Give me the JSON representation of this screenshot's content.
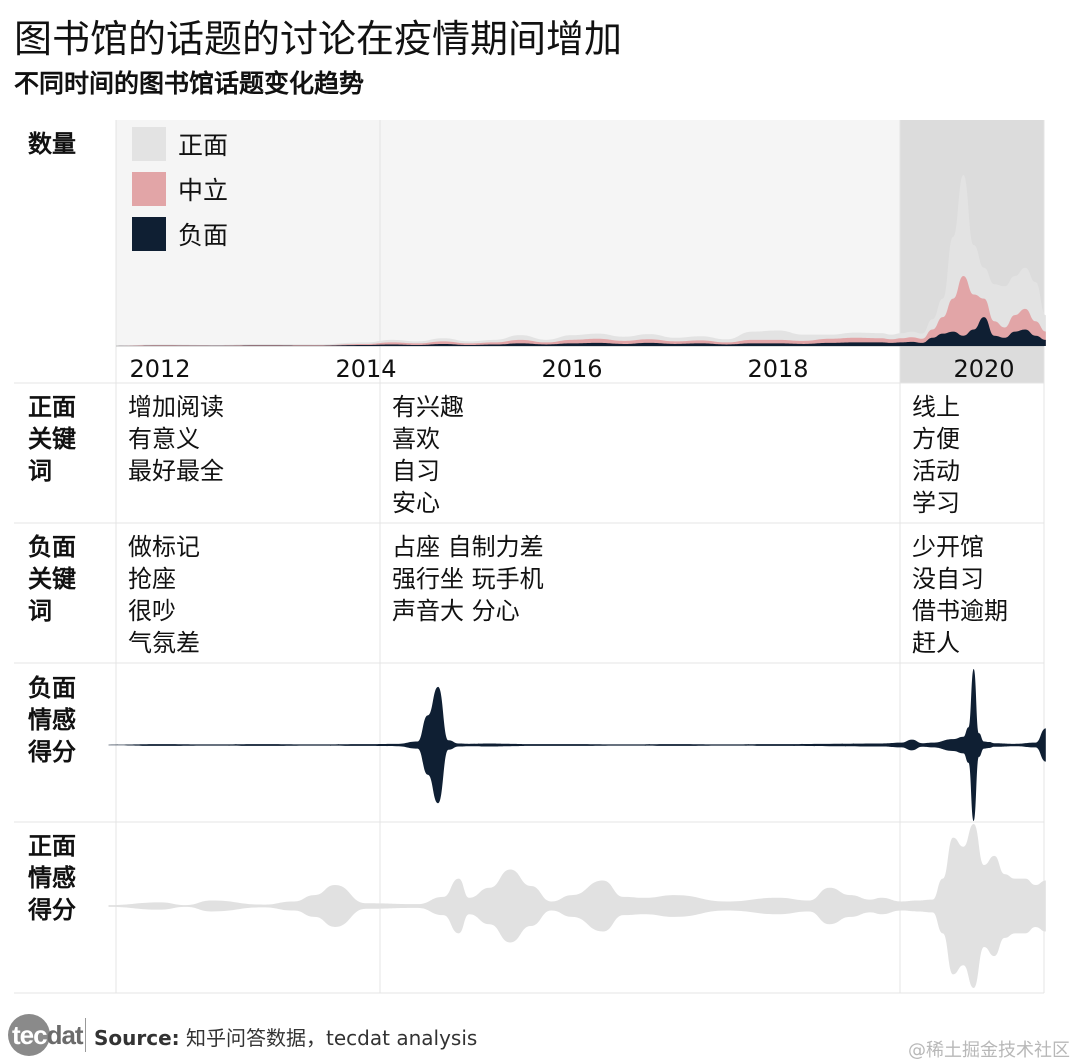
{
  "title": "图书馆的话题的讨论在疫情期间增加",
  "subtitle": "不同时间的图书馆话题变化趋势",
  "colors": {
    "positive": "#e3e3e3",
    "neutral": "#e2a5a7",
    "negative": "#0f1f33",
    "background": "#f5f5f5",
    "highlight": "#dcdcdc",
    "grid": "#e4e4e4"
  },
  "row_labels": {
    "count": "数量",
    "pos_keywords": [
      "正面",
      "关键",
      "词"
    ],
    "neg_keywords": [
      "负面",
      "关键",
      "词"
    ],
    "neg_sentiment": [
      "负面",
      "情感",
      "得分"
    ],
    "pos_sentiment": [
      "正面",
      "情感",
      "得分"
    ]
  },
  "keywords": {
    "positive": [
      [
        "增加阅读",
        "有意义",
        "最好最全"
      ],
      [
        "有兴趣",
        "喜欢",
        "自习",
        "安心"
      ],
      [
        "线上",
        "方便",
        "活动",
        "学习"
      ]
    ],
    "negative": [
      [
        "做标记",
        "抢座",
        "很吵",
        "气氛差"
      ],
      [
        "占座 自制力差",
        "强行坐 玩手机",
        "声音大 分心"
      ],
      [
        "少开馆",
        "没自习",
        "借书逾期",
        "赶人"
      ]
    ]
  },
  "chart_data": {
    "type": "area",
    "subtype": "stacked streamgraph with sentiment violin strips",
    "x_ticks": [
      "2012",
      "2014",
      "2016",
      "2018",
      "2020"
    ],
    "legend": [
      "正面",
      "中立",
      "负面"
    ],
    "legend_placement": "top-left",
    "highlight_period": "2020",
    "x": [
      2011.5,
      2012,
      2012.5,
      2013,
      2013.5,
      2014,
      2014.25,
      2014.5,
      2014.75,
      2015,
      2015.25,
      2015.5,
      2015.75,
      2016,
      2016.25,
      2016.5,
      2016.75,
      2017,
      2017.25,
      2017.5,
      2017.75,
      2018,
      2018.25,
      2018.5,
      2018.75,
      2019,
      2019.1,
      2019.2,
      2019.3,
      2019.4,
      2019.5,
      2019.6,
      2019.7,
      2019.8,
      2019.9,
      2020,
      2020.1,
      2020.2,
      2020.3,
      2020.4,
      2020.5,
      2020.6
    ],
    "series": [
      {
        "name": "负面",
        "values": [
          0,
          0.3,
          0.2,
          0.4,
          0.3,
          1,
          1.5,
          1,
          2,
          1,
          1.5,
          2.5,
          1.5,
          2.5,
          3,
          2,
          3,
          2,
          2.5,
          1.5,
          2.5,
          2.5,
          2,
          3,
          3.5,
          3.5,
          3,
          3.5,
          4,
          3,
          8,
          12,
          14,
          10,
          16,
          28,
          10,
          8,
          14,
          16,
          10,
          6
        ]
      },
      {
        "name": "中立",
        "values": [
          0,
          0.5,
          0.3,
          0.6,
          0.5,
          1,
          2,
          1.5,
          2.5,
          1.5,
          2,
          3.5,
          2,
          3.5,
          4,
          3,
          3.5,
          2.5,
          3,
          2,
          3.5,
          3.5,
          3,
          4,
          4.5,
          4,
          3.5,
          4,
          4.5,
          4,
          8,
          16,
          32,
          58,
          34,
          18,
          14,
          10,
          16,
          20,
          14,
          8
        ]
      },
      {
        "name": "正面",
        "values": [
          0,
          0.6,
          0.4,
          0.8,
          0.7,
          1.5,
          2.5,
          2,
          3,
          2,
          2.5,
          4.5,
          2.5,
          4.5,
          5,
          4,
          5,
          3.5,
          4,
          3,
          8,
          9,
          6,
          4,
          5,
          5,
          4.5,
          5,
          5.5,
          5,
          10,
          18,
          60,
          98,
          48,
          30,
          36,
          40,
          38,
          40,
          38,
          16
        ]
      }
    ],
    "y_max": 200,
    "neg_sentiment": {
      "x": [
        2011.5,
        2012,
        2012.5,
        2013,
        2013.5,
        2014,
        2014.3,
        2014.5,
        2014.6,
        2014.7,
        2014.8,
        2014.9,
        2015,
        2015.2,
        2015.4,
        2015.6,
        2016,
        2016.5,
        2017,
        2017.5,
        2018,
        2018.5,
        2019,
        2019.2,
        2019.3,
        2019.4,
        2019.5,
        2019.7,
        2019.8,
        2019.85,
        2019.9,
        2019.95,
        2020,
        2020.05,
        2020.1,
        2020.3,
        2020.5,
        2020.6
      ],
      "values": [
        0.5,
        1.5,
        1,
        1.5,
        1,
        1.5,
        2,
        6,
        50,
        98,
        8,
        2.5,
        2,
        2.5,
        2,
        1.5,
        1.5,
        1,
        1.5,
        1,
        1.5,
        2,
        2.5,
        4,
        9,
        3,
        4,
        10,
        14,
        30,
        128,
        20,
        6,
        5,
        3,
        2,
        4,
        28
      ]
    },
    "pos_sentiment": {
      "x": [
        2011.5,
        2012,
        2012.25,
        2012.5,
        2013,
        2013.3,
        2013.5,
        2013.7,
        2014,
        2014.5,
        2014.75,
        2014.9,
        2015,
        2015.2,
        2015.4,
        2015.6,
        2015.8,
        2016,
        2016.3,
        2016.5,
        2016.7,
        2017,
        2017.5,
        2018,
        2018.3,
        2018.5,
        2018.7,
        2018.9,
        2019,
        2019.2,
        2019.35,
        2019.5,
        2019.6,
        2019.7,
        2019.8,
        2019.9,
        2020,
        2020.1,
        2020.2,
        2020.3,
        2020.4,
        2020.5,
        2020.6
      ],
      "values": [
        2,
        8,
        2,
        12,
        3,
        10,
        24,
        46,
        6,
        4,
        20,
        60,
        18,
        40,
        80,
        44,
        10,
        24,
        56,
        20,
        18,
        24,
        10,
        18,
        12,
        40,
        24,
        14,
        18,
        10,
        12,
        14,
        60,
        150,
        130,
        180,
        90,
        110,
        70,
        60,
        60,
        46,
        56
      ]
    }
  },
  "footer": {
    "logo": "tecdat",
    "source_label": "Source:",
    "source_text": " 知乎问答数据，tecdat analysis",
    "watermark": "@稀土掘金技术社区"
  }
}
